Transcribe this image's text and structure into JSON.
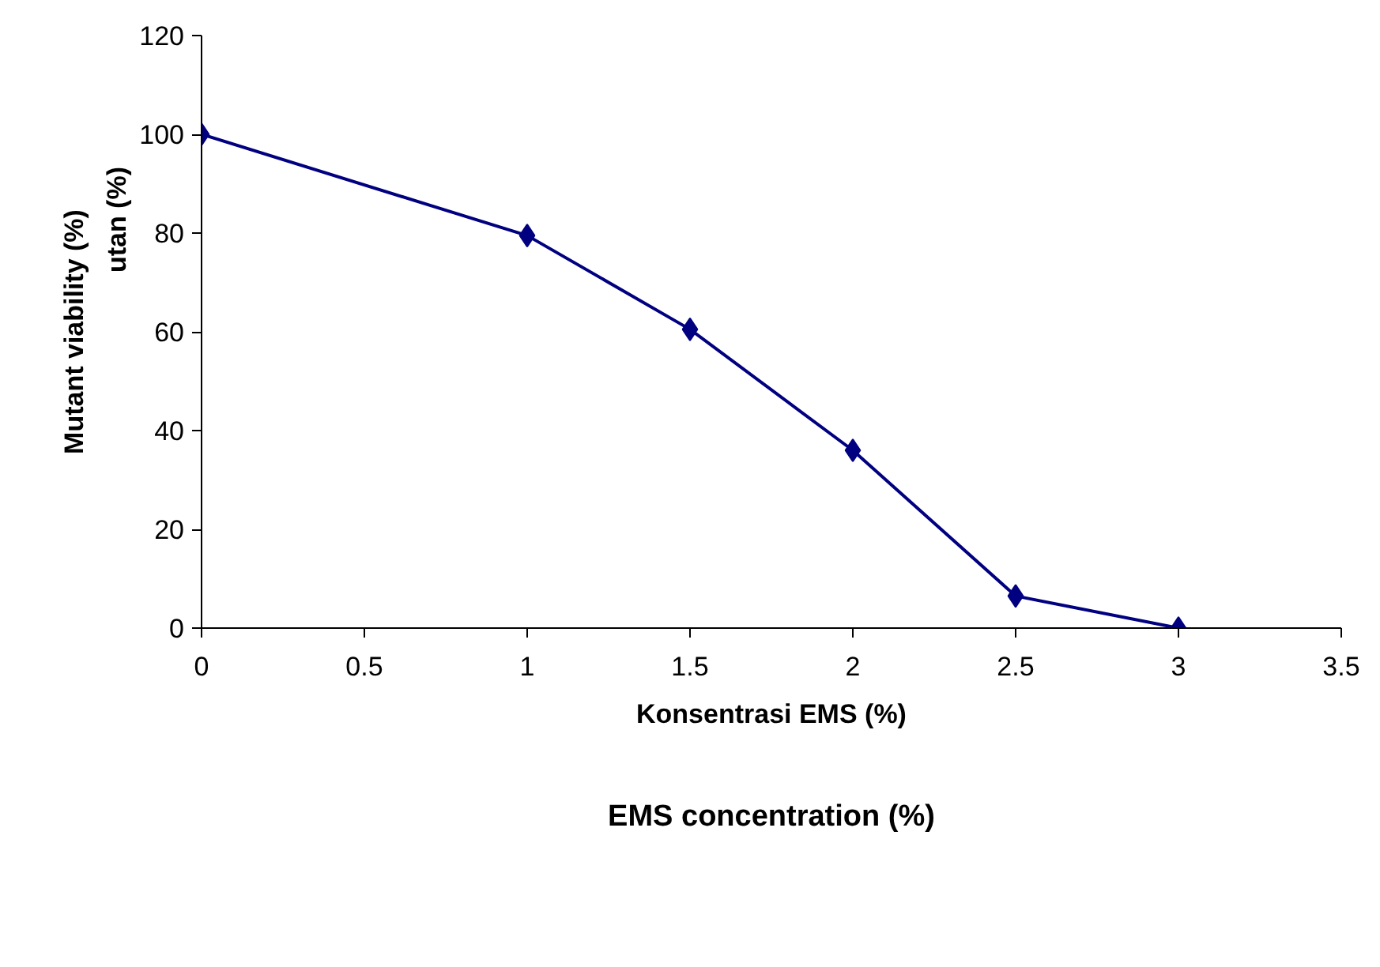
{
  "chart_data": {
    "type": "line",
    "xlabel": "Konsentrasi EMS (%)",
    "ylabel": "Mutant viability (%)",
    "x": [
      0,
      1,
      1.5,
      2,
      2.5,
      3
    ],
    "series": [
      {
        "color": "#000080",
        "values": [
          100,
          79.5,
          60.5,
          36,
          6.5,
          0
        ]
      }
    ],
    "marker": "diamond",
    "line_style": "solid",
    "grid": false,
    "xlim": [
      0,
      3.5
    ],
    "xticks": [
      0,
      0.5,
      1,
      1.5,
      2,
      2.5,
      3,
      3.5
    ],
    "ylim": [
      0,
      120
    ],
    "yticks": [
      0,
      20,
      40,
      60,
      80,
      100,
      120
    ],
    "annotations": [
      "utan (%)",
      "EMS concentration (%)"
    ]
  }
}
